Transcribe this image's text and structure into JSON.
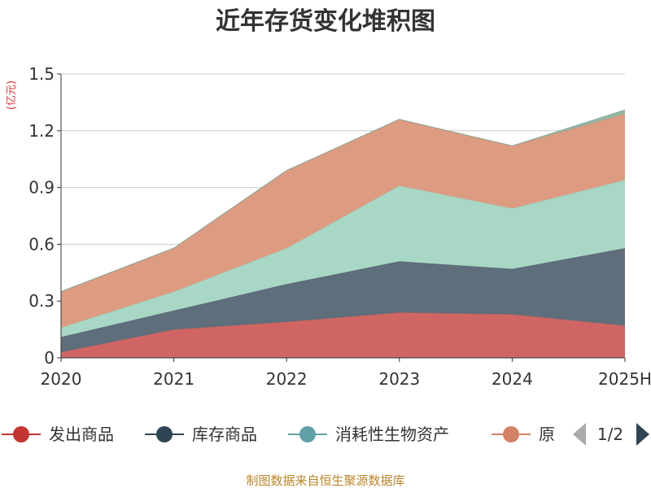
{
  "chart_data": {
    "type": "area",
    "stacked": true,
    "title": "近年存货变化堆积图",
    "ylabel": "(亿元)",
    "x": [
      "2020",
      "2021",
      "2022",
      "2023",
      "2024",
      "2025H"
    ],
    "ylim": [
      0,
      1.5
    ],
    "yticks": [
      "0",
      "0.3",
      "0.6",
      "0.9",
      "1.2",
      "1.5"
    ],
    "grid": true,
    "series": [
      {
        "name": "发出商品",
        "color": "#d06664",
        "values": [
          0.03,
          0.15,
          0.19,
          0.24,
          0.23,
          0.17
        ]
      },
      {
        "name": "库存商品",
        "color": "#5e6e7b",
        "values": [
          0.08,
          0.1,
          0.2,
          0.27,
          0.24,
          0.41
        ]
      },
      {
        "name": "消耗性生物资产",
        "color": "#a9d7c5",
        "values": [
          0.05,
          0.1,
          0.19,
          0.4,
          0.32,
          0.36
        ]
      },
      {
        "name": "原材料",
        "color": "#dd9c82",
        "values": [
          0.19,
          0.23,
          0.41,
          0.35,
          0.33,
          0.35
        ]
      },
      {
        "name": "",
        "color": "#94b7a4",
        "values": [
          0,
          0,
          0,
          0,
          0,
          0.02
        ]
      }
    ]
  },
  "legend": {
    "items": [
      {
        "label": "发出商品",
        "color": "#c23531"
      },
      {
        "label": "库存商品",
        "color": "#2f4554"
      },
      {
        "label": "消耗性生物资产",
        "color": "#61a0a8"
      },
      {
        "label": "原",
        "color": "#d48265"
      }
    ],
    "page": "1/2"
  },
  "source": "制图数据来自恒生聚源数据库"
}
